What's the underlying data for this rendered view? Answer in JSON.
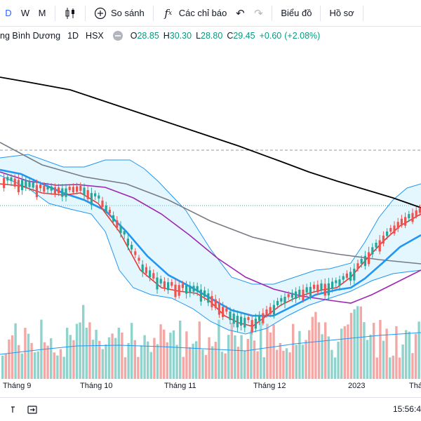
{
  "toolbar": {
    "intervals": [
      {
        "label": "D",
        "active": true
      },
      {
        "label": "W",
        "active": false
      },
      {
        "label": "M",
        "active": false
      }
    ],
    "compare_label": "So sánh",
    "indicators_label": "Các chỉ báo",
    "chart_type_label": "Biểu đồ",
    "profile_label": "Hồ sơ",
    "icons": {
      "candles": "candlestick-icon",
      "compare": "plus-circle-icon",
      "indicators": "fx-icon",
      "undo": "undo-icon",
      "redo": "redo-icon"
    }
  },
  "legend": {
    "symbol_name": "ng Bình Dương",
    "interval": "1D",
    "exchange": "HSX",
    "open_key": "O",
    "open": "28.85",
    "high_key": "H",
    "high": "30.30",
    "low_key": "L",
    "low": "28.80",
    "close_key": "C",
    "close": "29.45",
    "change": "+0.60",
    "change_pct": "(+2.08%)"
  },
  "axis": {
    "labels": [
      "Tháng 9",
      "Tháng 10",
      "Tháng 11",
      "Tháng 12",
      "2023",
      "Thá"
    ]
  },
  "status_bar": {
    "time": "15:56:4"
  },
  "colors": {
    "up": "#26a69a",
    "down": "#ef5350",
    "ma_fast": "#e53935",
    "ma_mid": "#2196f3",
    "ma_slow": "#9c27b0",
    "ma_gray": "#787b86",
    "ma_long": "#000000",
    "bollinger": "#2196f3",
    "bollinger_fill": "#b3e5fc",
    "volume_up": "#8fd3cc",
    "volume_down": "#f4a8a6",
    "accent": "#2962ff"
  }
}
